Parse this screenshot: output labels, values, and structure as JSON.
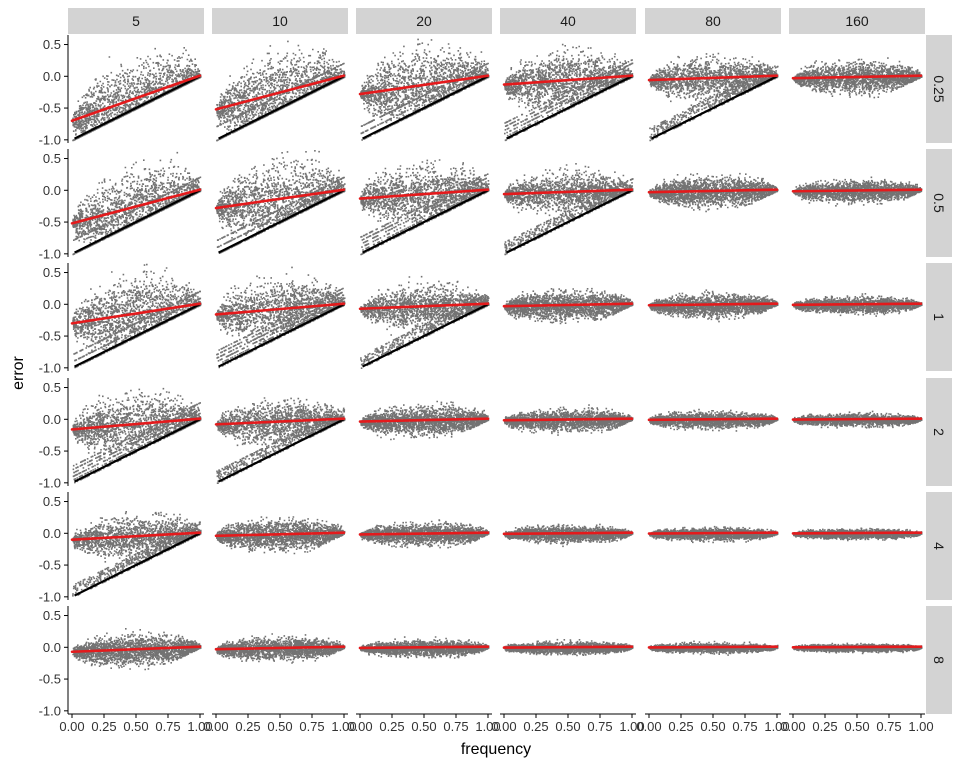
{
  "chart_data": {
    "type": "scatter",
    "facet_layout": "grid",
    "xlabel": "frequency",
    "ylabel": "error",
    "column_facets": [
      "5",
      "10",
      "20",
      "40",
      "80",
      "160"
    ],
    "row_facets": [
      "0.25",
      "0.5",
      "1",
      "2",
      "4",
      "8"
    ],
    "xlim": [
      0,
      1
    ],
    "ylim": [
      -1.05,
      0.65
    ],
    "x_ticks": [
      0,
      0.25,
      0.5,
      0.75,
      1
    ],
    "x_tick_labels": [
      "0.00",
      "0.25",
      "0.50",
      "0.75",
      "1.00"
    ],
    "y_ticks": [
      -1,
      -0.5,
      0,
      0.5
    ],
    "y_tick_labels": [
      "-1.0",
      "-0.5",
      "0.0",
      "0.5"
    ],
    "grid": false,
    "legend": "none",
    "point_color": "#000000",
    "fit_line_color": "#e41a1c",
    "strip_fill": "#d3d3d3",
    "fit_line_intercepts": [
      [
        -0.7,
        -0.52,
        -0.28,
        -0.13,
        -0.06,
        -0.03
      ],
      [
        -0.52,
        -0.28,
        -0.13,
        -0.06,
        -0.03,
        -0.015
      ],
      [
        -0.3,
        -0.16,
        -0.07,
        -0.03,
        -0.015,
        -0.008
      ],
      [
        -0.16,
        -0.08,
        -0.035,
        -0.015,
        -0.008,
        -0.004
      ],
      [
        -0.1,
        -0.04,
        -0.018,
        -0.008,
        -0.004,
        -0.002
      ],
      [
        -0.07,
        -0.03,
        -0.01,
        -0.005,
        -0.002,
        -0.001
      ]
    ]
  }
}
